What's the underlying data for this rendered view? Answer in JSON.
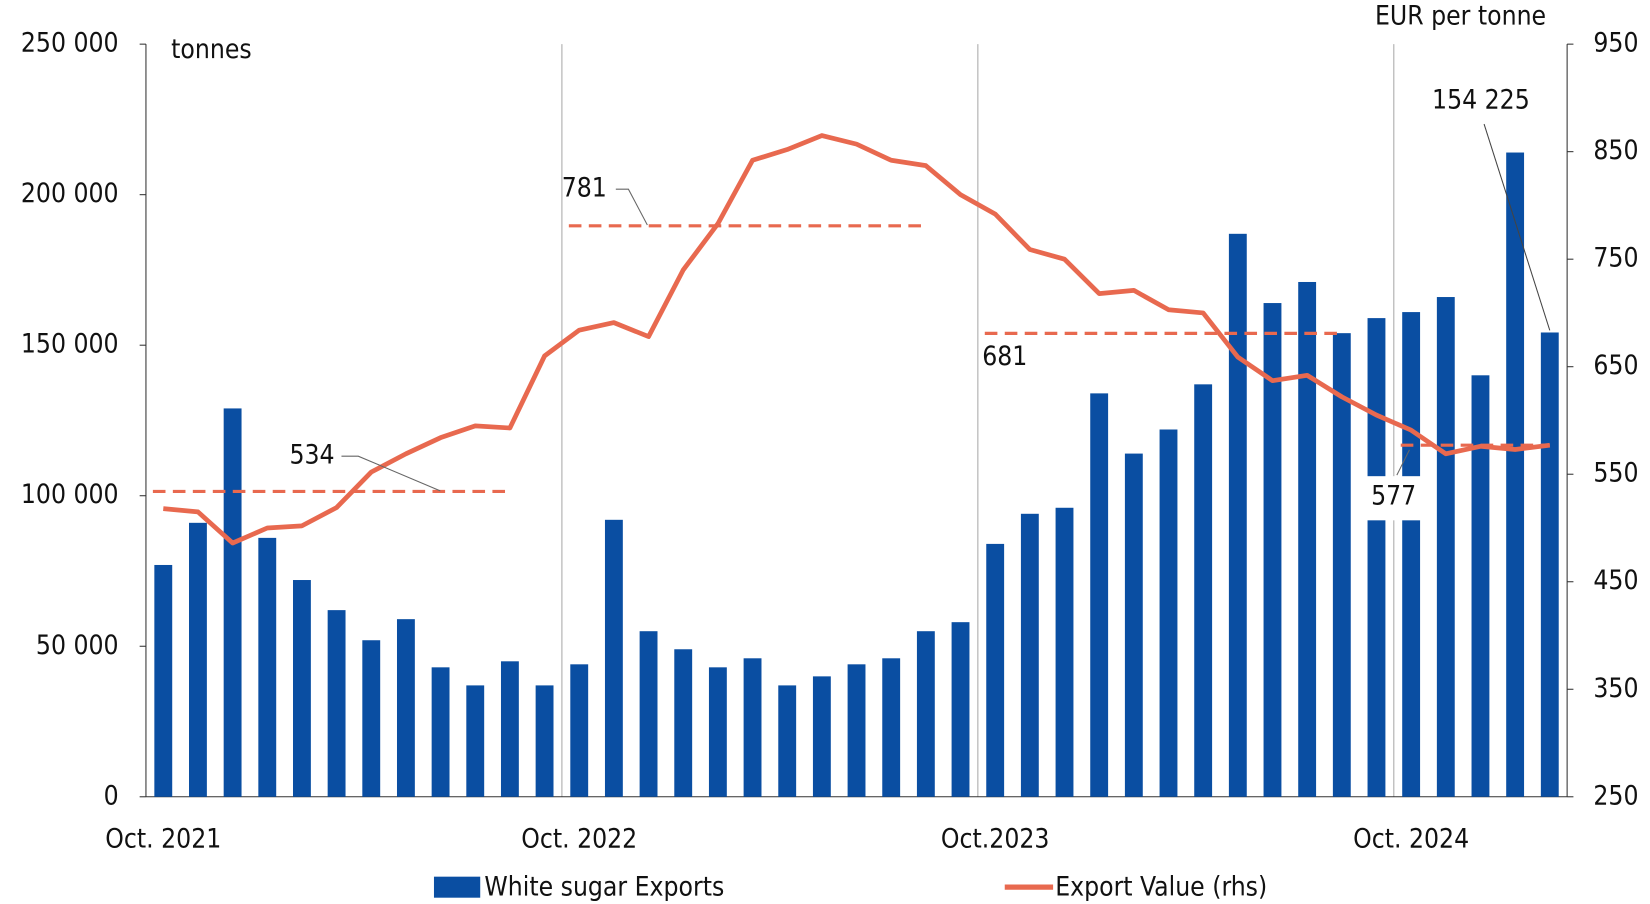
{
  "chart_data": {
    "type": "bar_line",
    "y_axis_label": "tonnes",
    "y2_axis_label": "EUR per tonne",
    "categories": [
      "Oct. 2021",
      null,
      null,
      null,
      null,
      null,
      null,
      null,
      null,
      null,
      null,
      null,
      "Oct. 2022",
      null,
      null,
      null,
      null,
      null,
      null,
      null,
      null,
      null,
      null,
      null,
      "Oct.2023",
      null,
      null,
      null,
      null,
      null,
      null,
      null,
      null,
      null,
      null,
      null,
      "Oct. 2024",
      null,
      null,
      null,
      null
    ],
    "series": [
      {
        "name": "White sugar Exports",
        "type": "bar",
        "color": "#0a4ea2",
        "values": [
          77000,
          91000,
          129000,
          86000,
          72000,
          62000,
          52000,
          59000,
          43000,
          37000,
          45000,
          37000,
          44000,
          92000,
          55000,
          49000,
          43000,
          46000,
          37000,
          40000,
          44000,
          46000,
          55000,
          58000,
          84000,
          94000,
          96000,
          134000,
          114000,
          122000,
          137000,
          187000,
          164000,
          171000,
          154000,
          159000,
          161000,
          166000,
          140000,
          214000,
          154225
        ],
        "value_labels": [
          null,
          null,
          null,
          null,
          null,
          null,
          null,
          null,
          null,
          null,
          null,
          null,
          null,
          null,
          null,
          null,
          null,
          null,
          null,
          null,
          null,
          null,
          null,
          null,
          null,
          null,
          null,
          null,
          null,
          null,
          null,
          null,
          null,
          null,
          null,
          null,
          null,
          null,
          null,
          null,
          "154 225"
        ]
      },
      {
        "name": "Export Value (rhs)",
        "type": "line",
        "axis": "y2",
        "color": "#e8694f",
        "values": [
          518,
          515,
          486,
          500,
          502,
          519,
          552,
          569,
          584,
          595,
          593,
          660,
          684,
          691,
          678,
          740,
          783,
          842,
          852,
          865,
          857,
          842,
          837,
          810,
          792,
          759,
          750,
          718,
          721,
          703,
          700,
          659,
          637,
          642,
          622,
          605,
          591,
          569,
          576,
          573,
          577
        ]
      }
    ],
    "averages": {
      "color": "#e8694f",
      "values": [
        534,
        781,
        681,
        577
      ]
    },
    "ylim": [
      0,
      250000
    ],
    "yticks": [
      0,
      {
        "value": 50000,
        "label": "50 000"
      },
      {
        "value": 100000,
        "label": "100 000"
      },
      {
        "value": 150000,
        "label": "150 000"
      },
      {
        "value": 200000,
        "label": "200 000"
      },
      {
        "value": 250000,
        "label": "250 000"
      }
    ],
    "y2lim": [
      250,
      950
    ],
    "y2ticks": [
      250,
      350,
      450,
      550,
      650,
      750,
      850,
      950
    ]
  }
}
